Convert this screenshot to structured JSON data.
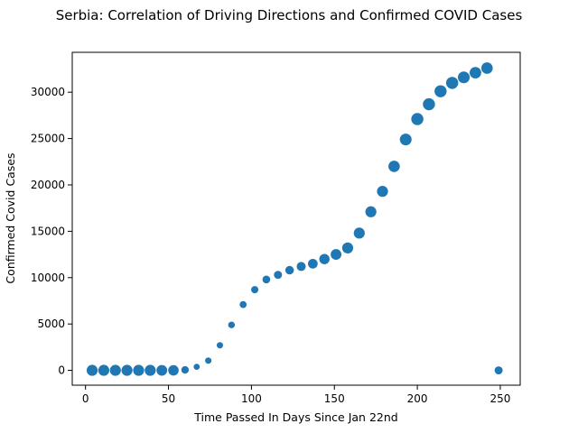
{
  "colors": {
    "marker": "#1f77b4",
    "axis": "#000000",
    "background": "#ffffff"
  },
  "chart_data": {
    "type": "scatter",
    "title": "Serbia: Correlation of Driving Directions and Confirmed COVID Cases",
    "xlabel": "Time Passed In Days Since Jan 22nd",
    "ylabel": "Confirmed Covid Cases",
    "xlim": [
      -8,
      262
    ],
    "ylim": [
      -1600,
      34300
    ],
    "xticks": [
      0,
      50,
      100,
      150,
      200,
      250
    ],
    "yticks": [
      0,
      5000,
      10000,
      15000,
      20000,
      25000,
      30000
    ],
    "xtick_labels": [
      "0",
      "50",
      "100",
      "150",
      "200",
      "250"
    ],
    "ytick_labels": [
      "0",
      "5000",
      "10000",
      "15000",
      "20000",
      "25000",
      "30000"
    ],
    "grid": false,
    "legend": null,
    "size_encoding": "marker size reflects driving directions value",
    "points": [
      {
        "x": 4,
        "y": 0,
        "size": 150
      },
      {
        "x": 11,
        "y": 0,
        "size": 150
      },
      {
        "x": 18,
        "y": 0,
        "size": 150
      },
      {
        "x": 25,
        "y": 0,
        "size": 150
      },
      {
        "x": 32,
        "y": 0,
        "size": 150
      },
      {
        "x": 39,
        "y": 0,
        "size": 150
      },
      {
        "x": 46,
        "y": 0,
        "size": 140
      },
      {
        "x": 53,
        "y": 0,
        "size": 135
      },
      {
        "x": 60,
        "y": 50,
        "size": 70
      },
      {
        "x": 67,
        "y": 380,
        "size": 45
      },
      {
        "x": 74,
        "y": 1050,
        "size": 50
      },
      {
        "x": 81,
        "y": 2700,
        "size": 50
      },
      {
        "x": 88,
        "y": 4900,
        "size": 55
      },
      {
        "x": 95,
        "y": 7100,
        "size": 60
      },
      {
        "x": 102,
        "y": 8700,
        "size": 65
      },
      {
        "x": 109,
        "y": 9800,
        "size": 75
      },
      {
        "x": 116,
        "y": 10300,
        "size": 80
      },
      {
        "x": 123,
        "y": 10800,
        "size": 90
      },
      {
        "x": 130,
        "y": 11200,
        "size": 100
      },
      {
        "x": 137,
        "y": 11500,
        "size": 115
      },
      {
        "x": 144,
        "y": 12000,
        "size": 130
      },
      {
        "x": 151,
        "y": 12500,
        "size": 140
      },
      {
        "x": 158,
        "y": 13200,
        "size": 150
      },
      {
        "x": 165,
        "y": 14800,
        "size": 150
      },
      {
        "x": 172,
        "y": 17100,
        "size": 150
      },
      {
        "x": 179,
        "y": 19300,
        "size": 150
      },
      {
        "x": 186,
        "y": 22000,
        "size": 160
      },
      {
        "x": 193,
        "y": 24900,
        "size": 170
      },
      {
        "x": 200,
        "y": 27100,
        "size": 180
      },
      {
        "x": 207,
        "y": 28700,
        "size": 180
      },
      {
        "x": 214,
        "y": 30100,
        "size": 180
      },
      {
        "x": 221,
        "y": 31000,
        "size": 180
      },
      {
        "x": 228,
        "y": 31600,
        "size": 170
      },
      {
        "x": 235,
        "y": 32100,
        "size": 165
      },
      {
        "x": 242,
        "y": 32600,
        "size": 160
      },
      {
        "x": 249,
        "y": 0,
        "size": 80
      }
    ]
  }
}
